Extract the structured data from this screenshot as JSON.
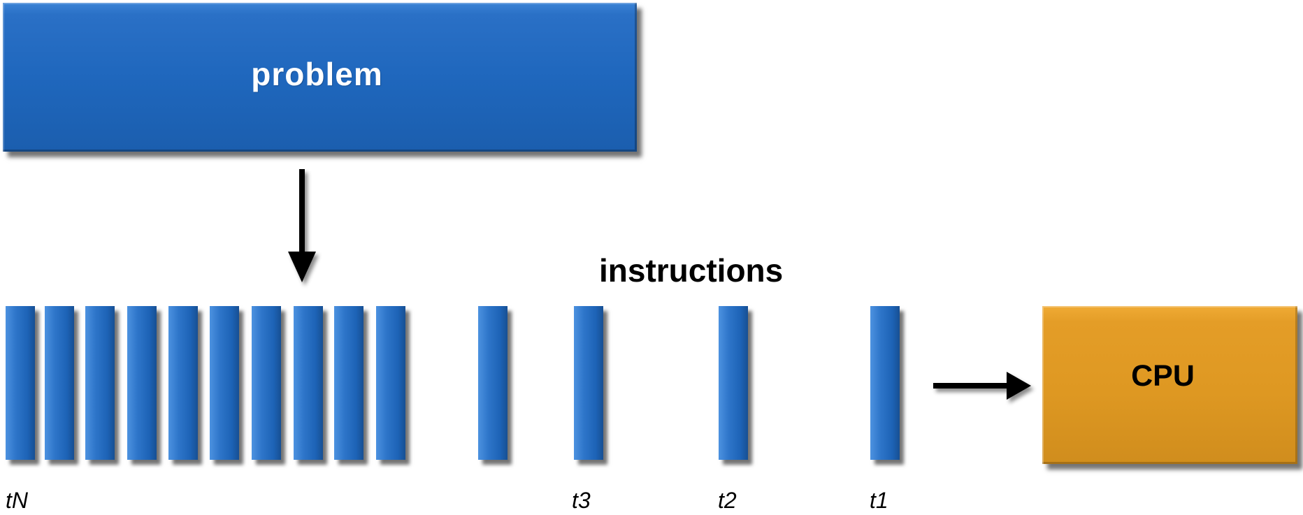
{
  "problem": {
    "label": "problem"
  },
  "instructions": {
    "label": "instructions",
    "count": 14
  },
  "cpu": {
    "label": "CPU"
  },
  "time_labels": {
    "tN": "tN",
    "t3": "t3",
    "t2": "t2",
    "t1": "t1"
  },
  "colors": {
    "instruction_blue": "#1f67bd",
    "cpu_orange": "#e09a24",
    "arrow": "#000000",
    "background": "#ffffff"
  },
  "icons": [
    "down-arrow-icon",
    "right-arrow-icon"
  ]
}
